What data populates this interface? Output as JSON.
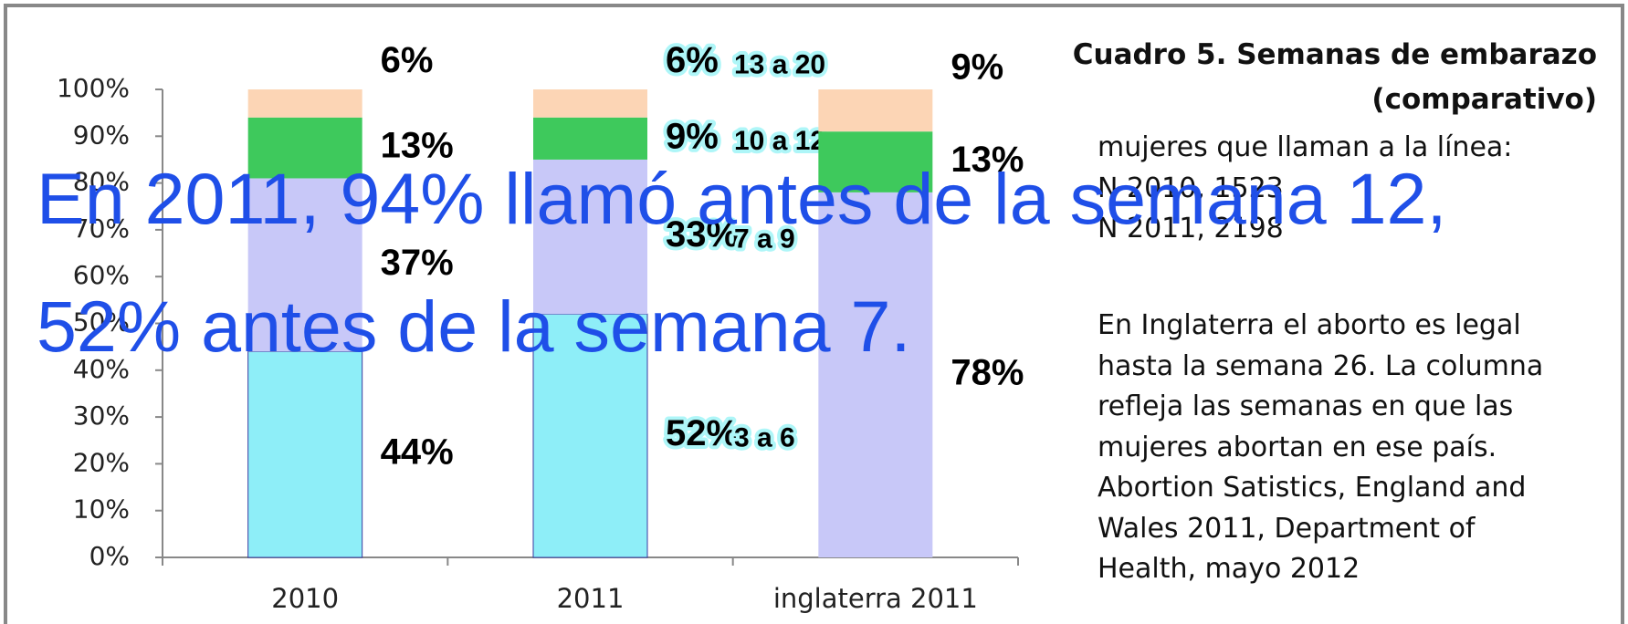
{
  "chart_data": {
    "type": "stacked_bar",
    "title": "Cuadro 5. Semanas de embarazo (comparativo)",
    "categories": [
      "2010",
      "2011",
      "inglaterra 2011"
    ],
    "series": [
      {
        "name": "3 a 6",
        "color": "#8eeef8",
        "values": [
          44,
          52,
          null
        ],
        "value_labels": [
          "44%",
          "52%",
          null
        ]
      },
      {
        "name": "7 a 9",
        "color": "#c8c8f8",
        "values": [
          37,
          33,
          78
        ],
        "value_labels": [
          "37%",
          "33%",
          "78%"
        ]
      },
      {
        "name": "10 a 12",
        "color": "#3ec95c",
        "values": [
          13,
          9,
          13
        ],
        "value_labels": [
          "13%",
          "9%",
          "13%"
        ]
      },
      {
        "name": "13 a 20",
        "color": "#fcd5b5",
        "values": [
          6,
          6,
          9
        ],
        "value_labels": [
          "6%",
          "6%",
          "9%"
        ]
      }
    ],
    "ylim": [
      0,
      100
    ],
    "yticks": [
      {
        "value": 0,
        "label": "0%"
      },
      {
        "value": 10,
        "label": "10%"
      },
      {
        "value": 20,
        "label": "20%"
      },
      {
        "value": 30,
        "label": "30%"
      },
      {
        "value": 40,
        "label": "40%"
      },
      {
        "value": 50,
        "label": "50%"
      },
      {
        "value": 60,
        "label": "60%"
      },
      {
        "value": 70,
        "label": "70%"
      },
      {
        "value": 80,
        "label": "80%"
      },
      {
        "value": 90,
        "label": "90%"
      },
      {
        "value": 100,
        "label": "100%"
      }
    ]
  },
  "notes": [
    "mujeres que llaman a la línea:",
    "N 2010, 1523",
    "N 2011, 2198"
  ],
  "paragraph": [
    "En Inglaterra el aborto es legal",
    "hasta la semana 26. La columna",
    "refleja las semanas en que las",
    "mujeres abortan en ese país.",
    "Abortion Satistics, England and",
    "Wales 2011, Department of",
    "Health, mayo 2012"
  ],
  "overlay": [
    "En 2011, 94% llamó antes de la semana 12,",
    "52% antes de la semana 7."
  ]
}
